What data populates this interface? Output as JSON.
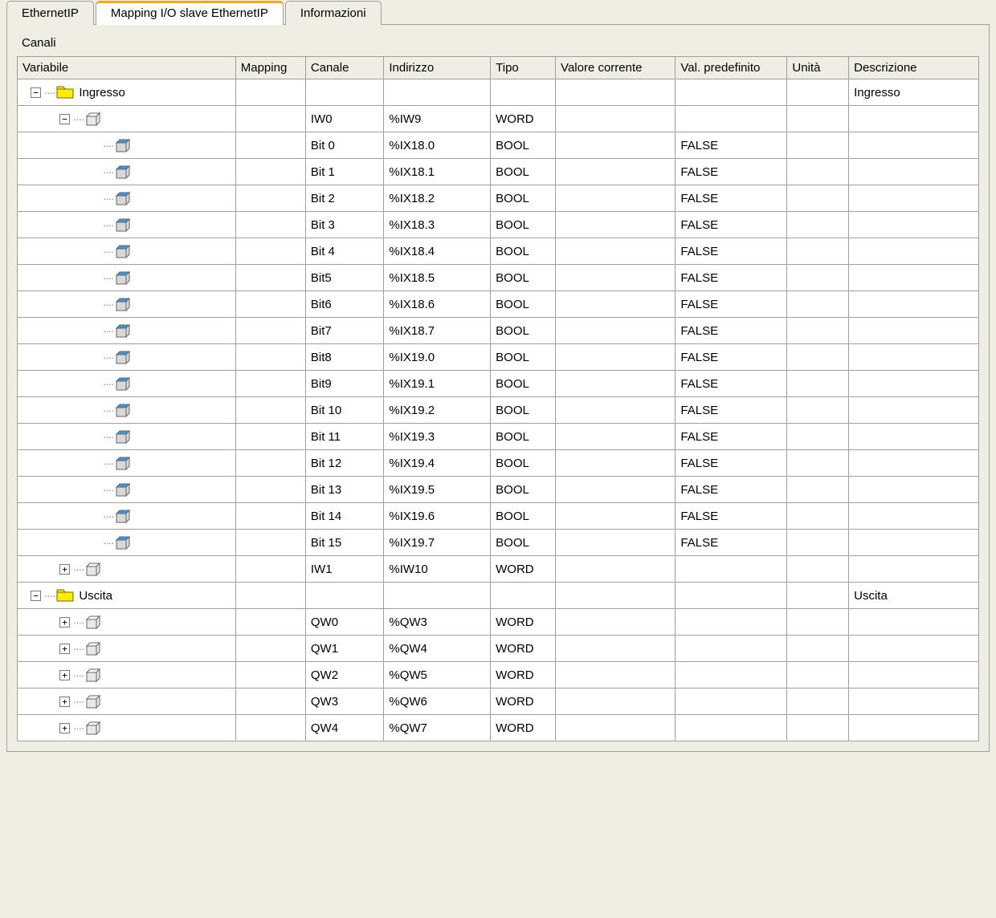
{
  "tabs": {
    "t0": "EthernetIP",
    "t1": "Mapping I/O slave EthernetIP",
    "t2": "Informazioni",
    "active": 1
  },
  "section_title": "Canali",
  "columns": {
    "c0": "Variabile",
    "c1": "Mapping",
    "c2": "Canale",
    "c3": "Indirizzo",
    "c4": "Tipo",
    "c5": "Valore corrente",
    "c6": "Val. predefinito",
    "c7": "Unità",
    "c8": "Descrizione"
  },
  "rows": [
    {
      "kind": "folder",
      "level": 0,
      "expand": "-",
      "label": "Ingresso",
      "canale": "",
      "indirizzo": "",
      "tipo": "",
      "def": "",
      "desc": "Ingresso"
    },
    {
      "kind": "box",
      "level": 1,
      "expand": "-",
      "label": "",
      "canale": "IW0",
      "indirizzo": "%IW9",
      "tipo": "WORD",
      "def": "",
      "desc": ""
    },
    {
      "kind": "bit",
      "level": 2,
      "label": "",
      "canale": "Bit 0",
      "indirizzo": "%IX18.0",
      "tipo": "BOOL",
      "def": "FALSE",
      "desc": ""
    },
    {
      "kind": "bit",
      "level": 2,
      "label": "",
      "canale": "Bit 1",
      "indirizzo": "%IX18.1",
      "tipo": "BOOL",
      "def": "FALSE",
      "desc": ""
    },
    {
      "kind": "bit",
      "level": 2,
      "label": "",
      "canale": "Bit 2",
      "indirizzo": "%IX18.2",
      "tipo": "BOOL",
      "def": "FALSE",
      "desc": ""
    },
    {
      "kind": "bit",
      "level": 2,
      "label": "",
      "canale": "Bit 3",
      "indirizzo": "%IX18.3",
      "tipo": "BOOL",
      "def": "FALSE",
      "desc": ""
    },
    {
      "kind": "bit",
      "level": 2,
      "label": "",
      "canale": "Bit 4",
      "indirizzo": "%IX18.4",
      "tipo": "BOOL",
      "def": "FALSE",
      "desc": ""
    },
    {
      "kind": "bit",
      "level": 2,
      "label": "",
      "canale": "Bit5",
      "indirizzo": "%IX18.5",
      "tipo": "BOOL",
      "def": "FALSE",
      "desc": ""
    },
    {
      "kind": "bit",
      "level": 2,
      "label": "",
      "canale": "Bit6",
      "indirizzo": "%IX18.6",
      "tipo": "BOOL",
      "def": "FALSE",
      "desc": ""
    },
    {
      "kind": "bit",
      "level": 2,
      "label": "",
      "canale": "Bit7",
      "indirizzo": "%IX18.7",
      "tipo": "BOOL",
      "def": "FALSE",
      "desc": ""
    },
    {
      "kind": "bit",
      "level": 2,
      "label": "",
      "canale": "Bit8",
      "indirizzo": "%IX19.0",
      "tipo": "BOOL",
      "def": "FALSE",
      "desc": ""
    },
    {
      "kind": "bit",
      "level": 2,
      "label": "",
      "canale": "Bit9",
      "indirizzo": "%IX19.1",
      "tipo": "BOOL",
      "def": "FALSE",
      "desc": ""
    },
    {
      "kind": "bit",
      "level": 2,
      "label": "",
      "canale": "Bit 10",
      "indirizzo": "%IX19.2",
      "tipo": "BOOL",
      "def": "FALSE",
      "desc": ""
    },
    {
      "kind": "bit",
      "level": 2,
      "label": "",
      "canale": "Bit 11",
      "indirizzo": "%IX19.3",
      "tipo": "BOOL",
      "def": "FALSE",
      "desc": ""
    },
    {
      "kind": "bit",
      "level": 2,
      "label": "",
      "canale": "Bit 12",
      "indirizzo": "%IX19.4",
      "tipo": "BOOL",
      "def": "FALSE",
      "desc": ""
    },
    {
      "kind": "bit",
      "level": 2,
      "label": "",
      "canale": "Bit 13",
      "indirizzo": "%IX19.5",
      "tipo": "BOOL",
      "def": "FALSE",
      "desc": ""
    },
    {
      "kind": "bit",
      "level": 2,
      "label": "",
      "canale": "Bit 14",
      "indirizzo": "%IX19.6",
      "tipo": "BOOL",
      "def": "FALSE",
      "desc": ""
    },
    {
      "kind": "bit",
      "level": 2,
      "last": true,
      "label": "",
      "canale": "Bit 15",
      "indirizzo": "%IX19.7",
      "tipo": "BOOL",
      "def": "FALSE",
      "desc": ""
    },
    {
      "kind": "box",
      "level": 1,
      "expand": "+",
      "label": "",
      "canale": "IW1",
      "indirizzo": "%IW10",
      "tipo": "WORD",
      "def": "",
      "desc": ""
    },
    {
      "kind": "folder",
      "level": 0,
      "expand": "-",
      "label": "Uscita",
      "canale": "",
      "indirizzo": "",
      "tipo": "",
      "def": "",
      "desc": "Uscita"
    },
    {
      "kind": "box",
      "level": 1,
      "expand": "+",
      "label": "",
      "canale": "QW0",
      "indirizzo": "%QW3",
      "tipo": "WORD",
      "def": "",
      "desc": ""
    },
    {
      "kind": "box",
      "level": 1,
      "expand": "+",
      "label": "",
      "canale": "QW1",
      "indirizzo": "%QW4",
      "tipo": "WORD",
      "def": "",
      "desc": ""
    },
    {
      "kind": "box",
      "level": 1,
      "expand": "+",
      "label": "",
      "canale": "QW2",
      "indirizzo": "%QW5",
      "tipo": "WORD",
      "def": "",
      "desc": ""
    },
    {
      "kind": "box",
      "level": 1,
      "expand": "+",
      "label": "",
      "canale": "QW3",
      "indirizzo": "%QW6",
      "tipo": "WORD",
      "def": "",
      "desc": ""
    },
    {
      "kind": "box",
      "level": 1,
      "expand": "+",
      "label": "",
      "canale": "QW4",
      "indirizzo": "%QW7",
      "tipo": "WORD",
      "def": "",
      "desc": ""
    }
  ],
  "colors": {
    "folder_fill": "#ffed00",
    "folder_stroke": "#6b6b00",
    "box_fill": "#e8e8e8",
    "box_top": "#f8f8f8",
    "box_stroke": "#666",
    "bit_fill": "#3399e6",
    "bit_side": "#d8d8d8"
  }
}
